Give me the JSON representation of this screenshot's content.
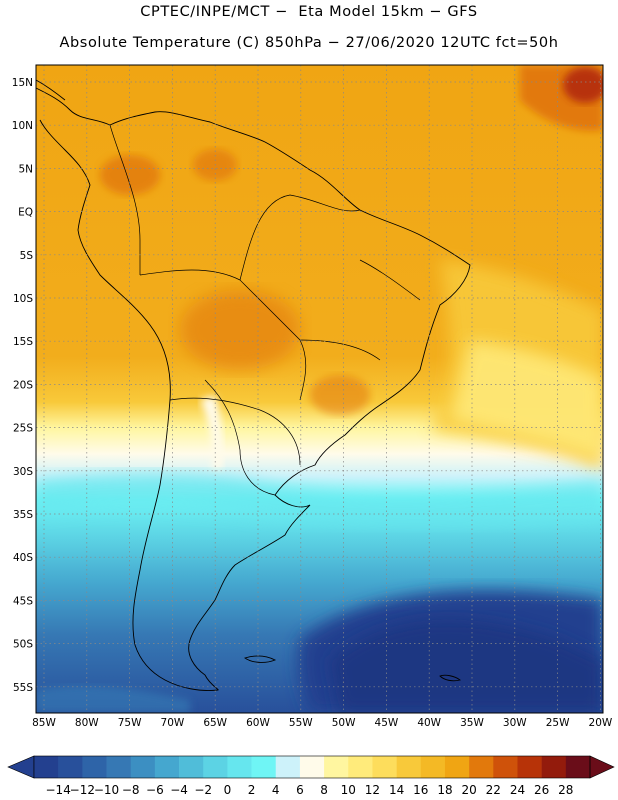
{
  "header": {
    "line1": "CPTEC/INPE/MCT −  Eta Model 15km − GFS",
    "line2": "Absolute Temperature (C) 850hPa − 27/06/2020 12UTC fct=50h"
  },
  "map": {
    "lat_labels": [
      "15N",
      "10N",
      "5N",
      "EQ",
      "5S",
      "10S",
      "15S",
      "20S",
      "25S",
      "30S",
      "35S",
      "40S",
      "45S",
      "50S",
      "55S"
    ],
    "lon_labels": [
      "85W",
      "80W",
      "75W",
      "70W",
      "65W",
      "60W",
      "55W",
      "50W",
      "45W",
      "40W",
      "35W",
      "30W",
      "25W",
      "20W"
    ],
    "lon_range": [
      -85,
      -20
    ],
    "lat_range": [
      -58,
      17
    ],
    "grid": "dotted",
    "field": "temperature 850hPa (C)"
  },
  "colorbar": {
    "labels": [
      "−14",
      "−12",
      "−10",
      "−8",
      "−6",
      "−4",
      "−2",
      "0",
      "2",
      "4",
      "6",
      "8",
      "10",
      "12",
      "14",
      "16",
      "18",
      "20",
      "22",
      "24",
      "26",
      "28"
    ],
    "colors": [
      "#23408f",
      "#28509b",
      "#2e64a8",
      "#3678b4",
      "#3c8fc2",
      "#45a7cf",
      "#50bdd9",
      "#5cd3e4",
      "#66e6ee",
      "#6ff5f5",
      "#cdf2fa",
      "#fffbea",
      "#fff6a0",
      "#ffeb7b",
      "#fddd5c",
      "#f8c93a",
      "#f4b925",
      "#f0a513",
      "#e2790c",
      "#cf520a",
      "#b73308",
      "#931b0c",
      "#6a0d19"
    ]
  }
}
